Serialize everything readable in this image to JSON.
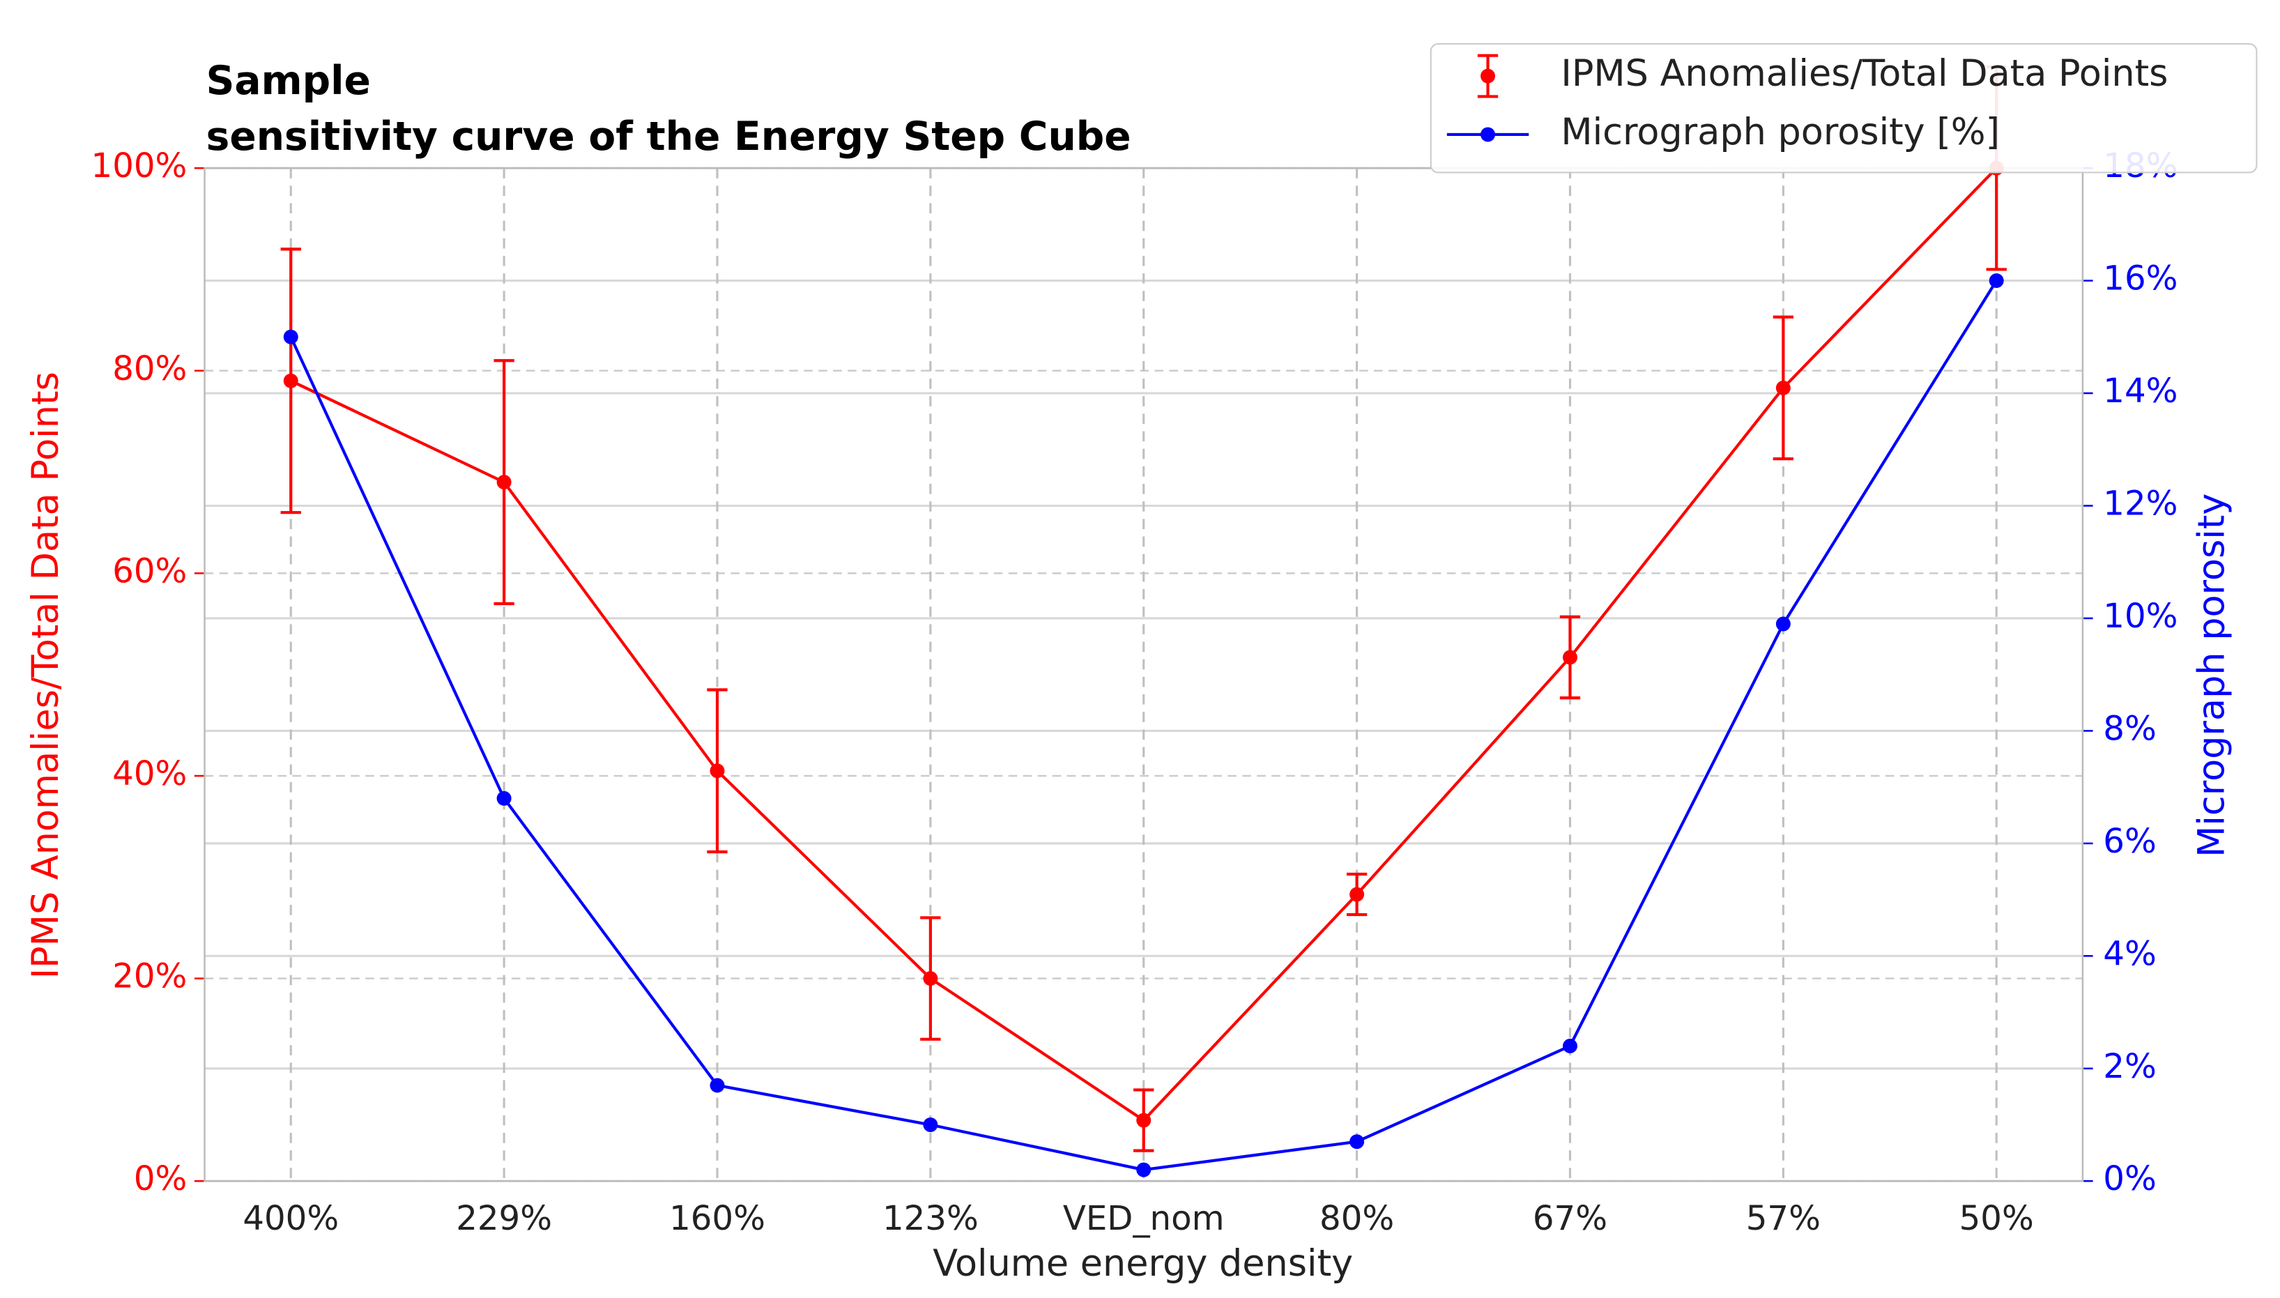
{
  "chart_data": {
    "type": "line",
    "title": [
      "Sample",
      "sensitivity curve of the Energy Step Cube"
    ],
    "x_label": "Volume energy density",
    "y_label": "IPMS Anomalies/Total Data Points",
    "y2_label": "Micrograph porosity",
    "categories": [
      "400%",
      "229%",
      "160%",
      "123%",
      "VED_nom",
      "80%",
      "67%",
      "57%",
      "50%"
    ],
    "series": [
      {
        "name": "IPMS Anomalies/Total Data Points",
        "color": "#ff0000",
        "values": [
          79,
          69,
          40.5,
          20,
          6,
          28.3,
          51.7,
          78.3,
          100
        ],
        "errors": [
          13,
          12,
          8,
          6,
          3,
          2,
          4,
          7,
          10
        ]
      },
      {
        "name": "Micrograph porosity [%]",
        "color": "#0000ff",
        "axis": "y2",
        "values": [
          15.0,
          6.8,
          1.7,
          1.0,
          0.2,
          0.7,
          2.4,
          9.9,
          16.0
        ]
      }
    ],
    "ylim": [
      0,
      100
    ],
    "yticks": [
      {
        "value": 0,
        "label": "0%"
      },
      {
        "value": 20,
        "label": "20%"
      },
      {
        "value": 40,
        "label": "40%"
      },
      {
        "value": 60,
        "label": "60%"
      },
      {
        "value": 80,
        "label": "80%"
      },
      {
        "value": 100,
        "label": "100%"
      }
    ],
    "y2lim": [
      0,
      18
    ],
    "y2ticks": [
      {
        "value": 0,
        "label": "0%"
      },
      {
        "value": 2,
        "label": "2%"
      },
      {
        "value": 4,
        "label": "4%"
      },
      {
        "value": 6,
        "label": "6%"
      },
      {
        "value": 8,
        "label": "8%"
      },
      {
        "value": 10,
        "label": "10%"
      },
      {
        "value": 12,
        "label": "12%"
      },
      {
        "value": 14,
        "label": "14%"
      },
      {
        "value": 16,
        "label": "16%"
      },
      {
        "value": 18,
        "label": "18%"
      }
    ],
    "grid": true,
    "legend": "upper right"
  }
}
